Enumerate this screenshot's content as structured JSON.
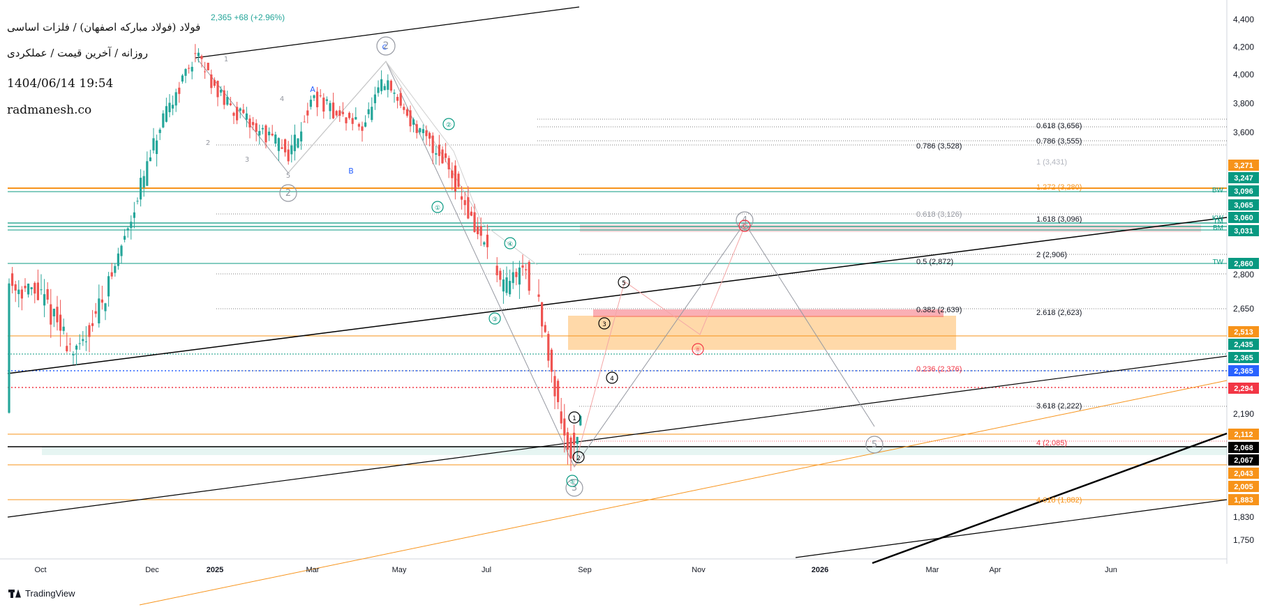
{
  "header": {
    "title": "فولاد (فولاد مبارکه اصفهان) / فلزات اساسی",
    "subtitle": "روزانه / آخرین قیمت / عملکردی",
    "datetime": "1404/06/14 19:54",
    "site": "radmanesh.co",
    "quote": "2,365  +68 (+2.96%)"
  },
  "branding": {
    "tradingview": "TradingView"
  },
  "colors": {
    "up": "#26a69a",
    "down": "#ef5350",
    "orange": "#f7931a",
    "teal": "#089981",
    "black": "#000000",
    "blue": "#2962ff",
    "red": "#f23645"
  },
  "chart_data": {
    "type": "candlestick",
    "y_axis": {
      "range": [
        1700,
        4430
      ],
      "ticks": [
        4400,
        4200,
        4000,
        3800,
        3600,
        2800,
        2650,
        2190,
        1830,
        1750
      ]
    },
    "x_axis": {
      "labels": [
        "Oct",
        "Dec",
        "2025",
        "Mar",
        "May",
        "Jul",
        "Sep",
        "Nov",
        "2026",
        "Mar",
        "Apr",
        "Jun"
      ]
    },
    "price_tags": [
      {
        "value": "3,271",
        "color": "#f7931a"
      },
      {
        "value": "3,247",
        "color": "#089981"
      },
      {
        "value": "3,096",
        "color": "#089981"
      },
      {
        "value": "3,065",
        "color": "#089981"
      },
      {
        "value": "3,060",
        "color": "#089981"
      },
      {
        "value": "3,031",
        "color": "#089981"
      },
      {
        "value": "2,860",
        "color": "#089981"
      },
      {
        "value": "2,513",
        "color": "#f7931a"
      },
      {
        "value": "2,435",
        "color": "#089981"
      },
      {
        "value": "2,365",
        "color": "#089981"
      },
      {
        "value": "2,365",
        "color": "#2962ff"
      },
      {
        "value": "2,294",
        "color": "#f23645"
      },
      {
        "value": "2,112",
        "color": "#f7931a"
      },
      {
        "value": "2,068",
        "color": "#000000"
      },
      {
        "value": "2,067",
        "color": "#000000"
      },
      {
        "value": "2,043",
        "color": "#f7931a"
      },
      {
        "value": "2,005",
        "color": "#f7931a"
      },
      {
        "value": "1,883",
        "color": "#f7931a"
      }
    ],
    "line_labels": [
      {
        "text": "BW",
        "price": 3245
      },
      {
        "text": "KW",
        "price": 3062
      },
      {
        "text": "TM",
        "price": 3048
      },
      {
        "text": "BM",
        "price": 3028
      },
      {
        "text": "TW",
        "price": 2860
      }
    ],
    "fib_labels": [
      {
        "text": "0.618 (3,656)",
        "color": "#131722"
      },
      {
        "text": "0.786 (3,555)",
        "color": "#131722"
      },
      {
        "text": "0.786 (3,528)",
        "color": "#131722"
      },
      {
        "text": "1 (3,431)",
        "color": "#b2b5be"
      },
      {
        "text": "1.272 (3,280)",
        "color": "#f7931a"
      },
      {
        "text": "0.618 (3,126)",
        "color": "#9598a1"
      },
      {
        "text": "1.618 (3,096)",
        "color": "#131722"
      },
      {
        "text": "2 (2,906)",
        "color": "#131722"
      },
      {
        "text": "0.5 (2,872)",
        "color": "#131722"
      },
      {
        "text": "0.382 (2,639)",
        "color": "#131722"
      },
      {
        "text": "2.618 (2,623)",
        "color": "#131722"
      },
      {
        "text": "0.236 (2,376)",
        "color": "#f23645"
      },
      {
        "text": "3.618 (2,222)",
        "color": "#131722"
      },
      {
        "text": "4 (2,085)",
        "color": "#f23645"
      },
      {
        "text": "4.618 (1,882)",
        "color": "#f7931a"
      }
    ],
    "wave_labels": [
      "2",
      "1",
      "2",
      "3",
      "4",
      "5",
      "1",
      "2",
      "3",
      "4",
      "5",
      "A",
      "B",
      "C",
      "4",
      "5",
      "①",
      "②",
      "③",
      "④",
      "⑤",
      "Ⓑ",
      "Ⓒ",
      "C",
      "2",
      "4",
      "5",
      "1",
      "2",
      "3",
      "4",
      "5"
    ]
  }
}
